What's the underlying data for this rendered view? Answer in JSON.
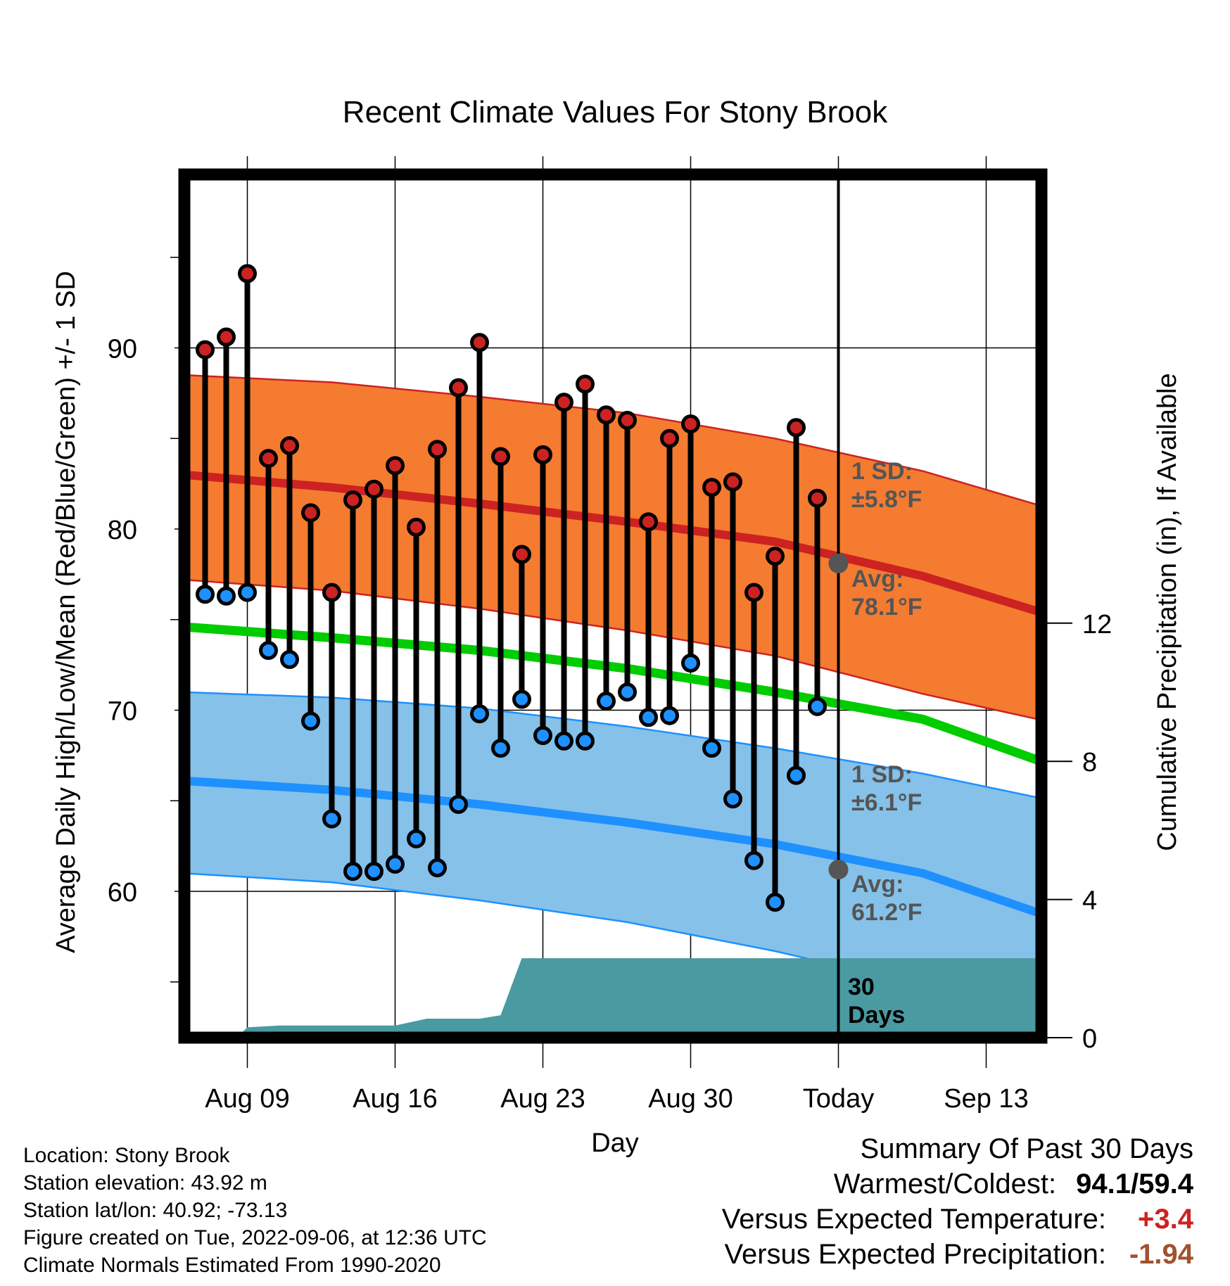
{
  "chart_data": {
    "type": "line",
    "title": "Recent Climate Values For Stony Brook",
    "xlabel": "Day",
    "ylabel": "Average Daily High/Low/Mean (Red/Blue/Green) +/- 1 SD",
    "y2label": "Cumulative Precipitation (in), If Available",
    "x_ticks": [
      "Aug 09",
      "Aug 16",
      "Aug 23",
      "Aug 30",
      "Today",
      "Sep 13"
    ],
    "y_ticks": [
      60,
      70,
      80,
      90
    ],
    "y2_ticks": [
      0,
      4,
      8,
      12
    ],
    "ylim": [
      51.5,
      97.5
    ],
    "y2lim": [
      0,
      24
    ],
    "grid": true,
    "days": [
      "Aug 07",
      "Aug 08",
      "Aug 09",
      "Aug 10",
      "Aug 11",
      "Aug 12",
      "Aug 13",
      "Aug 14",
      "Aug 15",
      "Aug 16",
      "Aug 17",
      "Aug 18",
      "Aug 19",
      "Aug 20",
      "Aug 21",
      "Aug 22",
      "Aug 23",
      "Aug 24",
      "Aug 25",
      "Aug 26",
      "Aug 27",
      "Aug 28",
      "Aug 29",
      "Aug 30",
      "Aug 31",
      "Sep 01",
      "Sep 02",
      "Sep 03",
      "Sep 04",
      "Sep 05"
    ],
    "series": [
      {
        "name": "High",
        "color": "#cc2222",
        "values": [
          89.9,
          90.6,
          94.1,
          83.9,
          84.6,
          80.9,
          76.5,
          81.6,
          82.2,
          83.5,
          80.1,
          84.4,
          87.8,
          90.3,
          84.0,
          78.6,
          84.1,
          87.0,
          88.0,
          86.3,
          86.0,
          80.4,
          85.0,
          85.8,
          82.3,
          82.6,
          76.5,
          78.5,
          85.6,
          81.7
        ]
      },
      {
        "name": "Low",
        "color": "#1e90ff",
        "values": [
          76.4,
          76.3,
          76.5,
          73.3,
          72.8,
          69.4,
          64.0,
          61.1,
          61.1,
          61.5,
          62.9,
          61.3,
          64.8,
          69.8,
          67.9,
          70.6,
          68.6,
          68.3,
          68.3,
          70.5,
          71.0,
          69.6,
          69.7,
          72.6,
          67.9,
          65.1,
          61.7,
          59.4,
          66.4,
          70.2
        ]
      }
    ],
    "normals": {
      "days_from_aug06": [
        0,
        7,
        14,
        21,
        28,
        35,
        42
      ],
      "high_avg": [
        83.0,
        82.3,
        81.4,
        80.4,
        79.3,
        77.4,
        74.9
      ],
      "high_sd_upper": [
        88.5,
        88.1,
        87.3,
        86.4,
        85.0,
        83.2,
        80.8
      ],
      "high_sd_lower": [
        77.2,
        76.6,
        75.6,
        74.4,
        73.0,
        70.9,
        69.1
      ],
      "mean_avg": [
        74.6,
        74.0,
        73.3,
        72.3,
        71.0,
        69.5,
        66.6
      ],
      "low_avg": [
        66.1,
        65.6,
        64.8,
        63.8,
        62.6,
        61.0,
        58.2
      ],
      "low_sd_upper": [
        71.0,
        70.7,
        70.1,
        69.1,
        67.9,
        66.5,
        64.8
      ],
      "low_sd_lower": [
        61.0,
        60.5,
        59.5,
        58.3,
        56.7,
        54.8,
        51.5
      ]
    },
    "precipitation": {
      "days_from_aug06": [
        2.5,
        3,
        4.5,
        7,
        8,
        10,
        11.5,
        12.5,
        14,
        15,
        16,
        17,
        18,
        19,
        20,
        25,
        28,
        30,
        35,
        42
      ],
      "values": [
        0.0,
        0.3,
        0.35,
        0.35,
        0.35,
        0.35,
        0.55,
        0.55,
        0.55,
        0.65,
        2.3,
        2.3,
        2.3,
        2.3,
        2.3,
        2.3,
        2.3,
        2.3,
        2.3,
        2.3
      ]
    },
    "annotations": {
      "high_sd": [
        "1 SD:",
        "±5.8°F"
      ],
      "high_avg": [
        "Avg:",
        "78.1°F"
      ],
      "low_sd": [
        "1 SD:",
        "±6.1°F"
      ],
      "low_avg": [
        "Avg:",
        "61.2°F"
      ],
      "precip_window": [
        "30",
        "Days"
      ]
    },
    "today_marker": {
      "high_avg": 78.1,
      "low_avg": 61.2
    }
  },
  "footer": {
    "location": "Location: Stony Brook",
    "elevation": "Station elevation: 43.92 m",
    "latlon": "Station lat/lon: 40.92; -73.13",
    "created": "Figure created on Tue, 2022-09-06, at 12:36 UTC",
    "normals": "Climate Normals Estimated From 1990-2020"
  },
  "summary": {
    "title": "Summary Of Past 30 Days",
    "warmest_label": "Warmest/Coldest:",
    "warmest": "94.1",
    "sep": "/",
    "coldest": "59.4",
    "temp_label": "Versus Expected Temperature:",
    "temp_value": "+3.4",
    "temp_color": "#cc2222",
    "precip_label": "Versus Expected Precipitation:",
    "precip_value": "-1.94",
    "precip_color": "#a0522d"
  },
  "colors": {
    "high_band": "#f47b30",
    "high_line": "#cc2222",
    "low_band": "#85c1e9",
    "low_line": "#1e90ff",
    "mean_line": "#00cc00",
    "precip": "#4a9aa2",
    "annotation": "#555555"
  }
}
